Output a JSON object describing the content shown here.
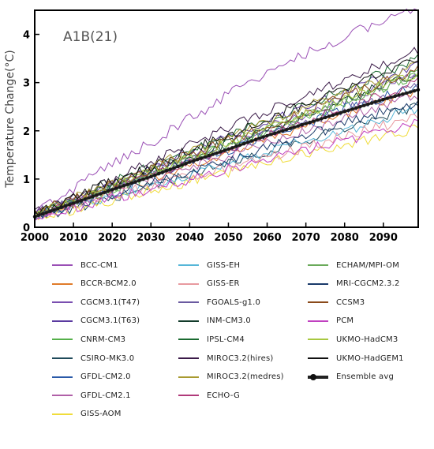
{
  "chart_data": {
    "type": "line",
    "title": "",
    "scenario_label": "A1B(21)",
    "xlabel": "",
    "ylabel": "Temperature Change(°C)",
    "xlim": [
      2000,
      2099
    ],
    "ylim": [
      0,
      4.5
    ],
    "x_ticks": [
      "2000",
      "2010",
      "2020",
      "2030",
      "2040",
      "2050",
      "2060",
      "2070",
      "2080",
      "2090"
    ],
    "y_ticks": [
      "0",
      "1",
      "2",
      "3",
      "4"
    ],
    "grid": false,
    "legend_placement": "below",
    "x_years": [
      2000,
      2010,
      2020,
      2030,
      2040,
      2050,
      2060,
      2070,
      2080,
      2090,
      2099
    ],
    "series": [
      {
        "name": "BCC-CM1",
        "color": "#9a4fb5",
        "values": [
          0.3,
          0.8,
          1.3,
          1.75,
          2.25,
          2.75,
          3.2,
          3.6,
          3.95,
          4.3,
          4.5
        ]
      },
      {
        "name": "BCCR-BCM2.0",
        "color": "#e07b2a",
        "values": [
          0.25,
          0.5,
          0.75,
          1.0,
          1.3,
          1.55,
          1.85,
          2.1,
          2.35,
          2.6,
          2.8
        ]
      },
      {
        "name": "CGCM3.1(T47)",
        "color": "#7a4fb0",
        "values": [
          0.25,
          0.55,
          0.85,
          1.15,
          1.45,
          1.75,
          2.05,
          2.35,
          2.65,
          2.95,
          3.2
        ]
      },
      {
        "name": "CGCM3.1(T63)",
        "color": "#5a3aa0",
        "values": [
          0.25,
          0.55,
          0.9,
          1.2,
          1.55,
          1.85,
          2.2,
          2.5,
          2.8,
          3.1,
          3.4
        ]
      },
      {
        "name": "CNRM-CM3",
        "color": "#55b04a",
        "values": [
          0.25,
          0.5,
          0.8,
          1.1,
          1.4,
          1.7,
          2.0,
          2.3,
          2.6,
          2.9,
          3.2
        ]
      },
      {
        "name": "CSIRO-MK3.0",
        "color": "#1f4a5a",
        "values": [
          0.2,
          0.4,
          0.6,
          0.85,
          1.1,
          1.3,
          1.55,
          1.8,
          2.05,
          2.3,
          2.5
        ]
      },
      {
        "name": "GFDL-CM2.0",
        "color": "#2a5aa8",
        "values": [
          0.25,
          0.5,
          0.8,
          1.05,
          1.35,
          1.6,
          1.9,
          2.15,
          2.45,
          2.7,
          2.95
        ]
      },
      {
        "name": "GFDL-CM2.1",
        "color": "#b060a8",
        "values": [
          0.25,
          0.5,
          0.75,
          1.0,
          1.25,
          1.5,
          1.75,
          2.0,
          2.25,
          2.5,
          2.75
        ]
      },
      {
        "name": "GISS-AOM",
        "color": "#f0dc3a",
        "values": [
          0.2,
          0.35,
          0.55,
          0.75,
          0.95,
          1.15,
          1.35,
          1.55,
          1.7,
          1.9,
          2.05
        ]
      },
      {
        "name": "GISS-EH",
        "color": "#56b6d8",
        "values": [
          0.25,
          0.45,
          0.65,
          0.9,
          1.1,
          1.35,
          1.55,
          1.8,
          2.0,
          2.25,
          2.45
        ]
      },
      {
        "name": "GISS-ER",
        "color": "#e89aa0",
        "values": [
          0.25,
          0.45,
          0.65,
          0.85,
          1.05,
          1.25,
          1.45,
          1.65,
          1.9,
          2.1,
          2.3
        ]
      },
      {
        "name": "FGOALS-g1.0",
        "color": "#6a5aa0",
        "values": [
          0.3,
          0.55,
          0.85,
          1.1,
          1.4,
          1.65,
          1.95,
          2.2,
          2.45,
          2.7,
          2.95
        ]
      },
      {
        "name": "INM-CM3.0",
        "color": "#123a2a",
        "values": [
          0.25,
          0.55,
          0.85,
          1.15,
          1.45,
          1.75,
          2.05,
          2.35,
          2.65,
          2.95,
          3.2
        ]
      },
      {
        "name": "IPSL-CM4",
        "color": "#1a6a30",
        "values": [
          0.3,
          0.6,
          0.95,
          1.25,
          1.55,
          1.9,
          2.2,
          2.55,
          2.85,
          3.2,
          3.5
        ]
      },
      {
        "name": "MIROC3.2(hires)",
        "color": "#3a1a48",
        "values": [
          0.3,
          0.65,
          1.0,
          1.35,
          1.7,
          2.05,
          2.4,
          2.75,
          3.05,
          3.4,
          3.65
        ]
      },
      {
        "name": "MIROC3.2(medres)",
        "color": "#a89a30",
        "values": [
          0.3,
          0.6,
          0.9,
          1.25,
          1.55,
          1.85,
          2.2,
          2.5,
          2.8,
          3.1,
          3.35
        ]
      },
      {
        "name": "ECHO-G",
        "color": "#b03a7a",
        "values": [
          0.25,
          0.5,
          0.8,
          1.05,
          1.35,
          1.6,
          1.9,
          2.2,
          2.45,
          2.75,
          3.0
        ]
      },
      {
        "name": "ECHAM/MPI-OM",
        "color": "#6aaa5a",
        "values": [
          0.25,
          0.5,
          0.8,
          1.1,
          1.4,
          1.7,
          2.0,
          2.3,
          2.6,
          2.9,
          3.15
        ]
      },
      {
        "name": "MRI-CGCM2.3.2",
        "color": "#1a3a6a",
        "values": [
          0.25,
          0.45,
          0.7,
          0.9,
          1.15,
          1.4,
          1.65,
          1.9,
          2.15,
          2.4,
          2.6
        ]
      },
      {
        "name": "CCSM3",
        "color": "#8a4a1a",
        "values": [
          0.3,
          0.6,
          0.9,
          1.2,
          1.5,
          1.8,
          2.1,
          2.4,
          2.7,
          3.0,
          3.25
        ]
      },
      {
        "name": "PCM",
        "color": "#c040c0",
        "values": [
          0.25,
          0.4,
          0.6,
          0.8,
          1.0,
          1.2,
          1.4,
          1.6,
          1.8,
          2.0,
          2.2
        ]
      },
      {
        "name": "UKMO-HadCM3",
        "color": "#a8c840",
        "values": [
          0.25,
          0.55,
          0.85,
          1.15,
          1.45,
          1.75,
          2.05,
          2.35,
          2.65,
          2.95,
          3.2
        ]
      },
      {
        "name": "UKMO-HadGEM1",
        "color": "#111111",
        "values": [
          0.3,
          0.6,
          0.95,
          1.25,
          1.6,
          1.9,
          2.25,
          2.55,
          2.9,
          3.2,
          3.5
        ]
      },
      {
        "name": "Ensemble avg",
        "color": "#222222",
        "ensemble": true,
        "values": [
          0.22,
          0.5,
          0.78,
          1.05,
          1.35,
          1.62,
          1.9,
          2.15,
          2.4,
          2.65,
          2.85
        ]
      }
    ]
  },
  "legend_columns": [
    [
      0,
      1,
      2,
      3,
      4,
      5,
      6,
      7,
      8
    ],
    [
      9,
      10,
      11,
      12,
      13,
      14,
      15,
      16
    ],
    [
      17,
      18,
      19,
      20,
      21,
      22,
      23
    ]
  ]
}
